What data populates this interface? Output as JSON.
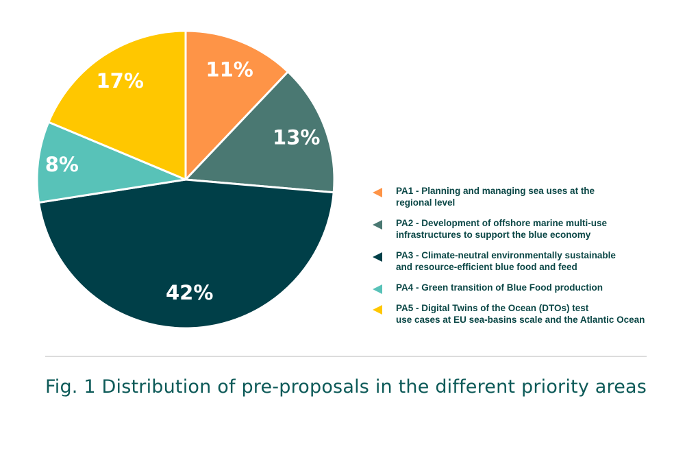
{
  "chart_data": {
    "type": "pie",
    "title": "",
    "slices": [
      {
        "key": "PA1",
        "value": 11,
        "label": "11%",
        "color": "#fe9447",
        "legend_lines": [
          "PA1 - Planning and managing sea uses at the",
          "regional level"
        ]
      },
      {
        "key": "PA2",
        "value": 13,
        "label": "13%",
        "color": "#4a7872",
        "legend_lines": [
          "PA2 - Development of offshore marine multi-use",
          "infrastructures to support the blue economy"
        ]
      },
      {
        "key": "PA3",
        "value": 42,
        "label": "42%",
        "color": "#003f48",
        "legend_lines": [
          "PA3 - Climate-neutral environmentally sustainable",
          "and resource-efficient blue food and feed"
        ]
      },
      {
        "key": "PA4",
        "value": 8,
        "label": "8%",
        "color": "#58c2b8",
        "legend_lines": [
          "PA4 - Green transition of Blue Food production"
        ]
      },
      {
        "key": "PA5",
        "value": 17,
        "label": "17%",
        "color": "#ffc700",
        "legend_lines": [
          "PA5 - Digital Twins of the Ocean (DTOs) test",
          "use cases at EU sea-basins scale and the Atlantic Ocean"
        ]
      }
    ],
    "start_angle_deg": 0,
    "direction": "clockwise",
    "legend_position": "right"
  },
  "caption": "Fig. 1 Distribution of pre-proposals in the different priority areas"
}
